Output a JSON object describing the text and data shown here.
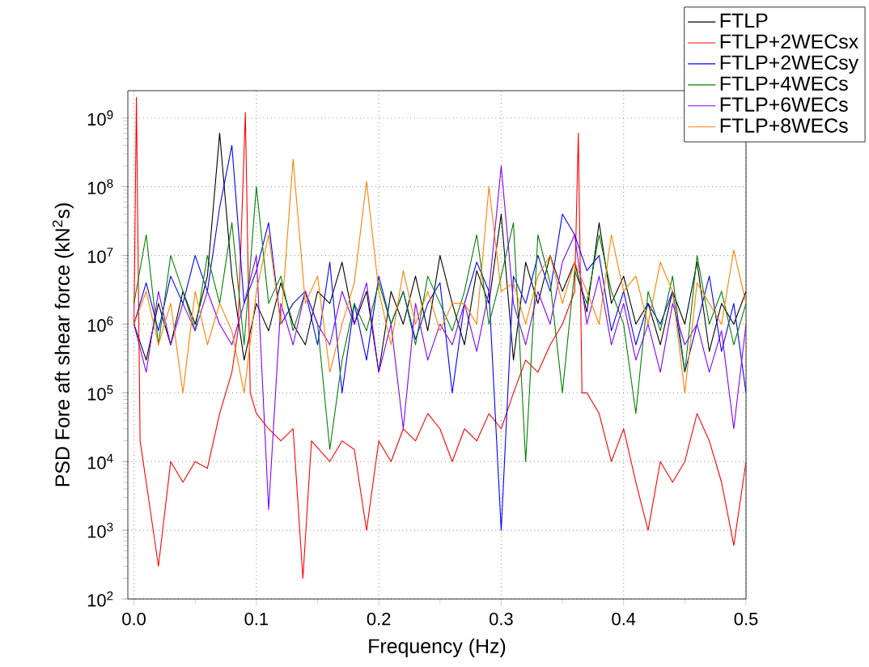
{
  "chart_data": {
    "type": "line",
    "xlabel": "Frequency (Hz)",
    "ylabel": "PSD Fore aft shear force (kN$^{2}$s)",
    "log": "y",
    "grid": true,
    "legend": "top right",
    "line_style": "solid",
    "marker": "none",
    "xlim": [
      -0.005,
      0.5
    ],
    "ylim": [
      100,
      2500000000
    ],
    "xticks": [
      {
        "value": 0,
        "label": "0.0"
      },
      {
        "value": 0.1,
        "label": "0.1"
      },
      {
        "value": 0.2,
        "label": "0.2"
      },
      {
        "value": 0.3,
        "label": "0.3"
      },
      {
        "value": 0.4,
        "label": "0.4"
      },
      {
        "value": 0.5,
        "label": "0.5"
      }
    ],
    "yticks": [
      {
        "value": 100,
        "label": "10$^{2}$"
      },
      {
        "value": 1000,
        "label": "10$^{3}$"
      },
      {
        "value": 10000,
        "label": "10$^{4}$"
      },
      {
        "value": 100000,
        "label": "10$^{5}$"
      },
      {
        "value": 1000000,
        "label": "10$^{6}$"
      },
      {
        "value": 10000000,
        "label": "10$^{7}$"
      },
      {
        "value": 100000000,
        "label": "10$^{8}$"
      },
      {
        "value": 1000000000,
        "label": "10$^{9}$"
      }
    ],
    "x": [
      0,
      0.01,
      0.02,
      0.03,
      0.04,
      0.05,
      0.06,
      0.07,
      0.08,
      0.09,
      0.1,
      0.11,
      0.12,
      0.13,
      0.14,
      0.15,
      0.16,
      0.17,
      0.18,
      0.19,
      0.2,
      0.21,
      0.22,
      0.23,
      0.24,
      0.25,
      0.26,
      0.27,
      0.28,
      0.29,
      0.3,
      0.31,
      0.32,
      0.33,
      0.34,
      0.35,
      0.36,
      0.37,
      0.38,
      0.39,
      0.4,
      0.41,
      0.42,
      0.43,
      0.44,
      0.45,
      0.46,
      0.47,
      0.48,
      0.49,
      0.5
    ],
    "series": [
      {
        "name": "FTLP",
        "color": "#000000",
        "values": [
          1000000.0,
          300000.0,
          2000000.0,
          500000.0,
          3000000.0,
          1000000.0,
          5000000.0,
          600000000.0,
          5000000.0,
          300000.0,
          2000000.0,
          800000.0,
          4000000.0,
          1000000.0,
          500000.0,
          3000000.0,
          2000000.0,
          8000000.0,
          1000000.0,
          3000000.0,
          200000.0,
          3000000.0,
          1000000.0,
          5000000.0,
          800000.0,
          10000000.0,
          2000000.0,
          500000.0,
          6000000.0,
          2000000.0,
          40000000.0,
          300000.0,
          8000000.0,
          2000000.0,
          10000000.0,
          3000000.0,
          8000000.0,
          1500000.0,
          30000000.0,
          2000000.0,
          5000000.0,
          1000000.0,
          2000000.0,
          500000.0,
          3000000.0,
          1000000.0,
          8000000.0,
          400000.0,
          2000000.0,
          1000000.0,
          3000000.0
        ]
      },
      {
        "name": "FTLP+2WECsx",
        "color": "#ff0000",
        "x": [
          0,
          0.002,
          0.005,
          0.01,
          0.02,
          0.03,
          0.04,
          0.05,
          0.06,
          0.07,
          0.08,
          0.085,
          0.091,
          0.095,
          0.1,
          0.11,
          0.12,
          0.13,
          0.138,
          0.145,
          0.16,
          0.17,
          0.18,
          0.19,
          0.2,
          0.21,
          0.22,
          0.23,
          0.24,
          0.25,
          0.26,
          0.27,
          0.28,
          0.29,
          0.3,
          0.31,
          0.32,
          0.33,
          0.34,
          0.35,
          0.36,
          0.363,
          0.366,
          0.37,
          0.38,
          0.39,
          0.4,
          0.41,
          0.42,
          0.43,
          0.44,
          0.45,
          0.46,
          0.47,
          0.48,
          0.49,
          0.5
        ],
        "values": [
          1000000.0,
          2000000000.0,
          20000.0,
          5000.0,
          300.0,
          10000.0,
          5000.0,
          10000.0,
          8000.0,
          50000.0,
          200000.0,
          800000.0,
          1200000000.0,
          100000.0,
          50000.0,
          30000.0,
          20000.0,
          30000.0,
          200.0,
          20000.0,
          10000.0,
          20000.0,
          15000.0,
          1000.0,
          20000.0,
          10000.0,
          30000.0,
          20000.0,
          50000.0,
          30000.0,
          10000.0,
          30000.0,
          20000.0,
          50000.0,
          30000.0,
          100000.0,
          300000.0,
          200000.0,
          500000.0,
          1000000.0,
          3000000.0,
          600000000.0,
          100000.0,
          100000.0,
          50000.0,
          10000.0,
          30000.0,
          5000.0,
          1000.0,
          10000.0,
          5000.0,
          10000.0,
          50000.0,
          20000.0,
          5000.0,
          600.0,
          10000.0
        ]
      },
      {
        "name": "FTLP+2WECsy",
        "color": "#0000ff",
        "values": [
          1000000.0,
          4000000.0,
          800000.0,
          5000000.0,
          2000000.0,
          10000000.0,
          3000000.0,
          50000000.0,
          400000000.0,
          2000000.0,
          6000000.0,
          30000000.0,
          1000000.0,
          2000000.0,
          3000000.0,
          500000.0,
          8000000.0,
          100000.0,
          2000000.0,
          300000.0,
          5000000.0,
          1000000.0,
          3000000.0,
          600000.0,
          2000000.0,
          4000000.0,
          100000.0,
          2000000.0,
          8000000.0,
          3000000.0,
          1000.0,
          5000000.0,
          2000000.0,
          10000000.0,
          3000000.0,
          40000000.0,
          20000000.0,
          6000000.0,
          10000000.0,
          800000.0,
          3000000.0,
          500000.0,
          2000000.0,
          1000000.0,
          3000000.0,
          200000.0,
          1000000.0,
          5000000.0,
          400000.0,
          2000000.0,
          100000.0
        ]
      },
      {
        "name": "FTLP+4WECs",
        "color": "#008000",
        "values": [
          2000000.0,
          20000000.0,
          500000.0,
          10000000.0,
          3000000.0,
          800000.0,
          10000000.0,
          2000000.0,
          30000000.0,
          500000.0,
          100000000.0,
          2000000.0,
          5000000.0,
          800000.0,
          3000000.0,
          1000000.0,
          15000.0,
          300000.0,
          2000000.0,
          800000.0,
          4000000.0,
          1000000.0,
          3000000.0,
          500000.0,
          5000000.0,
          2000000.0,
          800000.0,
          3000000.0,
          20000000.0,
          1000000.0,
          5000000.0,
          30000000.0,
          10000.0,
          20000000.0,
          4000000.0,
          100000.0,
          6000000.0,
          2000000.0,
          20000000.0,
          3000000.0,
          1000000.0,
          50000.0,
          3000000.0,
          800000.0,
          5000000.0,
          200000.0,
          10000000.0,
          1000000.0,
          3000000.0,
          500000.0,
          2000000.0
        ]
      },
      {
        "name": "FTLP+6WECs",
        "color": "#8000ff",
        "values": [
          1000000.0,
          200000.0,
          3000000.0,
          500000.0,
          2000000.0,
          800000.0,
          3000000.0,
          1000000.0,
          500000.0,
          2000000.0,
          10000000.0,
          2000.0,
          2000000.0,
          500000.0,
          3000000.0,
          1000000.0,
          500000.0,
          3000000.0,
          1000000.0,
          4000000.0,
          200000.0,
          1000000.0,
          30000.0,
          2000000.0,
          300000.0,
          1000000.0,
          500000.0,
          2000000.0,
          400000.0,
          3000000.0,
          200000000.0,
          2000000.0,
          500000.0,
          3000000.0,
          1000000.0,
          8000000.0,
          20000000.0,
          1000000.0,
          5000000.0,
          500000.0,
          2000000.0,
          300000.0,
          1000000.0,
          200000.0,
          2000000.0,
          500000.0,
          1000000.0,
          200000.0,
          800000.0,
          30000.0,
          1000000.0
        ]
      },
      {
        "name": "FTLP+8WECs",
        "color": "#ff8000",
        "values": [
          1000000.0,
          3000000.0,
          500000.0,
          2000000.0,
          100000.0,
          3000000.0,
          500000.0,
          2000000.0,
          800000.0,
          100000.0,
          3000000.0,
          20000000.0,
          1000000.0,
          250000000.0,
          2000000.0,
          5000000.0,
          200000.0,
          1000000.0,
          4000000.0,
          120000000.0,
          3000000.0,
          500000.0,
          6000000.0,
          1000000.0,
          3000000.0,
          800000.0,
          2000000.0,
          2000000.0,
          1000000.0,
          100000000.0,
          3000000.0,
          4000000.0,
          1000000.0,
          5000000.0,
          10000000.0,
          2000000.0,
          8000000.0,
          3000000.0,
          1000000.0,
          20000000.0,
          3000000.0,
          5000000.0,
          1000000.0,
          8000000.0,
          3000000.0,
          100000.0,
          4000000.0,
          2000000.0,
          1000000.0,
          12000000.0,
          2000000.0
        ]
      }
    ]
  }
}
